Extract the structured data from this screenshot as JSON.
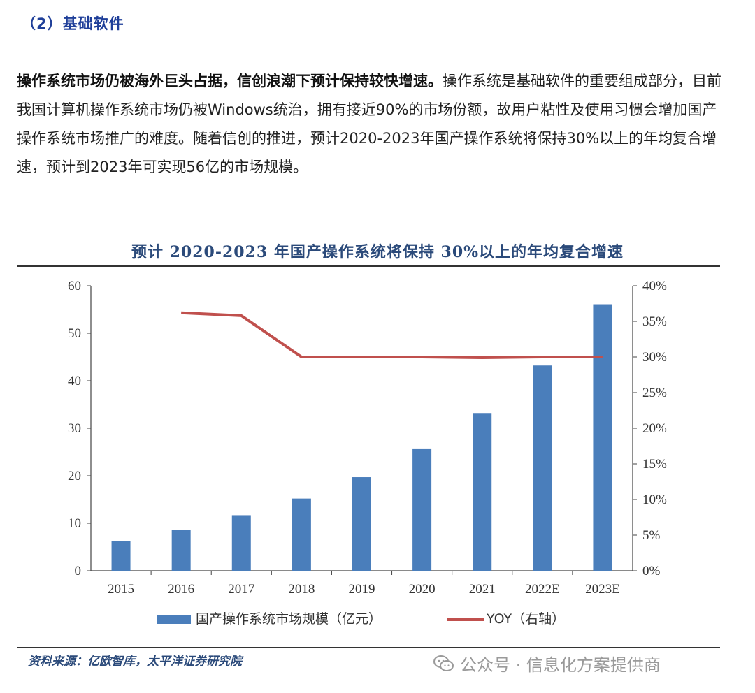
{
  "section_title": "（2）基础软件",
  "paragraph": {
    "bold_lead": "操作系统市场仍被海外巨头占据，信创浪潮下预计保持较快增速。",
    "body": "操作系统是基础软件的重要组成部分，目前我国计算机操作系统市场仍被Windows统治，拥有接近90%的市场份额，故用户粘性及使用习惯会增加国产操作系统市场推广的难度。随着信创的推进，预计2020-2023年国产操作系统将保持30%以上的年均复合增速，预计到2023年可实现56亿的市场规模。"
  },
  "chart_data": {
    "type": "bar",
    "title": "预计 2020-2023 年国产操作系统将保持 30%以上的年均复合增速",
    "categories": [
      "2015",
      "2016",
      "2017",
      "2018",
      "2019",
      "2020",
      "2021",
      "2022E",
      "2023E"
    ],
    "series": [
      {
        "name": "国产操作系统市场规模（亿元）",
        "type": "bar",
        "axis": "left",
        "color": "#4a7ebb",
        "values": [
          6.3,
          8.6,
          11.7,
          15.2,
          19.7,
          25.6,
          33.2,
          43.2,
          56.1
        ]
      },
      {
        "name": "YOY（右轴）",
        "type": "line",
        "axis": "right",
        "color": "#c0504d",
        "values": [
          null,
          36.2,
          35.8,
          30.0,
          30.0,
          30.0,
          29.9,
          30.0,
          30.0
        ]
      }
    ],
    "ylim_left": [
      0,
      60
    ],
    "yticks_left": [
      "0",
      "10",
      "20",
      "30",
      "40",
      "50",
      "60"
    ],
    "ylim_right": [
      0,
      40
    ],
    "yticks_right": [
      "0%",
      "5%",
      "10%",
      "15%",
      "20%",
      "25%",
      "30%",
      "35%",
      "40%"
    ],
    "legend": [
      "国产操作系统市场规模（亿元）",
      "YOY（右轴）"
    ],
    "legend_position": "bottom"
  },
  "source": "资料来源：亿欧智库，太平洋证券研究院",
  "watermark": "公众号 · 信息化方案提供商",
  "colors": {
    "title_blue": "#1f3f99",
    "bar": "#4a7ebb",
    "line": "#c0504d"
  }
}
